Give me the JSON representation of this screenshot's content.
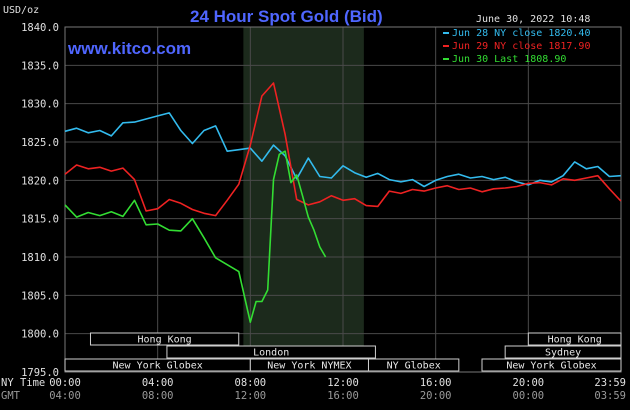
{
  "header": {
    "title": "24 Hour Spot Gold (Bid)",
    "unit": "USD/oz",
    "website": "www.kitco.com",
    "timestamp": "June 30, 2022 10:48"
  },
  "colors": {
    "background": "#000000",
    "grid": "#555555",
    "highlight": "#1c2a1c",
    "session_bar": "#000000",
    "session_border": "#cccccc"
  },
  "chart_data": {
    "type": "line",
    "title": "24 Hour Spot Gold (Bid)",
    "ylabel": "USD/oz",
    "ylim": [
      1795.0,
      1840.0
    ],
    "yticks": [
      "1840.0",
      "1835.0",
      "1830.0",
      "1825.0",
      "1820.0",
      "1815.0",
      "1810.0",
      "1805.0",
      "1800.0",
      "1795.0"
    ],
    "xlim": [
      0,
      24
    ],
    "x_axis_rows": [
      {
        "label": "NY Time",
        "ticks": [
          "00:00",
          "04:00",
          "08:00",
          "12:00",
          "16:00",
          "20:00",
          "23:59"
        ]
      },
      {
        "label": "GMT",
        "ticks": [
          "04:00",
          "08:00",
          "12:00",
          "16:00",
          "20:00",
          "00:00",
          "03:59"
        ]
      }
    ],
    "highlight_band": [
      7.7,
      12.9
    ],
    "grid": true,
    "legend": "top-right",
    "series": [
      {
        "name": "Jun 28 NY close 1820.40",
        "color": "#33bbee",
        "x": [
          0,
          0.5,
          1,
          1.5,
          2,
          2.5,
          3,
          3.5,
          4,
          4.5,
          5,
          5.5,
          6,
          6.5,
          7,
          7.5,
          8,
          8.5,
          9,
          9.5,
          10,
          10.5,
          11,
          11.5,
          12,
          12.5,
          13,
          13.5,
          14,
          14.5,
          15,
          15.5,
          16,
          16.5,
          17,
          17.5,
          18,
          18.5,
          19,
          19.5,
          20,
          20.5,
          21,
          21.5,
          22,
          22.5,
          23,
          23.5,
          23.99
        ],
        "y": [
          1826.4,
          1826.8,
          1826.2,
          1826.5,
          1825.8,
          1827.5,
          1827.6,
          1828.0,
          1828.4,
          1828.8,
          1826.5,
          1824.8,
          1826.5,
          1827.1,
          1823.8,
          1824.0,
          1824.2,
          1822.5,
          1824.6,
          1823.2,
          1820.2,
          1822.9,
          1820.5,
          1820.3,
          1821.9,
          1821.0,
          1820.4,
          1820.9,
          1820.1,
          1819.8,
          1820.1,
          1819.2,
          1820.0,
          1820.5,
          1820.8,
          1820.3,
          1820.5,
          1820.1,
          1820.4,
          1819.8,
          1819.4,
          1820.0,
          1819.8,
          1820.6,
          1822.4,
          1821.5,
          1821.8,
          1820.5,
          1820.6
        ]
      },
      {
        "name": "Jun 29 NY close 1817.90",
        "color": "#ee2222",
        "x": [
          0,
          0.5,
          1,
          1.5,
          2,
          2.5,
          3,
          3.5,
          4,
          4.5,
          5,
          5.5,
          6,
          6.5,
          7,
          7.5,
          8,
          8.5,
          9,
          9.5,
          10,
          10.5,
          11,
          11.5,
          12,
          12.5,
          13,
          13.5,
          14,
          14.5,
          15,
          15.5,
          16,
          16.5,
          17,
          17.5,
          18,
          18.5,
          19,
          19.5,
          20,
          20.5,
          21,
          21.5,
          22,
          22.5,
          23,
          23.5,
          23.99
        ],
        "y": [
          1820.8,
          1822.0,
          1821.5,
          1821.7,
          1821.2,
          1821.6,
          1820.1,
          1816.0,
          1816.3,
          1817.5,
          1817.0,
          1816.2,
          1815.7,
          1815.4,
          1817.4,
          1819.5,
          1824.6,
          1831.0,
          1832.7,
          1826.0,
          1817.5,
          1816.8,
          1817.2,
          1818.0,
          1817.4,
          1817.6,
          1816.7,
          1816.6,
          1818.6,
          1818.3,
          1818.8,
          1818.6,
          1819.0,
          1819.3,
          1818.8,
          1819.0,
          1818.5,
          1818.9,
          1819.0,
          1819.2,
          1819.6,
          1819.7,
          1819.4,
          1820.2,
          1820.0,
          1820.3,
          1820.6,
          1818.9,
          1817.3
        ]
      },
      {
        "name": "Jun 30 Last 1808.90",
        "color": "#33dd33",
        "x": [
          0,
          0.5,
          1,
          1.5,
          2,
          2.5,
          3,
          3.5,
          4,
          4.5,
          5,
          5.5,
          6,
          6.5,
          7,
          7.5,
          8,
          8.25,
          8.5,
          8.75,
          9,
          9.25,
          9.5,
          9.75,
          10,
          10.25,
          10.5,
          10.75,
          11,
          11.25
        ],
        "y": [
          1816.8,
          1815.2,
          1815.8,
          1815.4,
          1815.9,
          1815.3,
          1817.4,
          1814.2,
          1814.3,
          1813.5,
          1813.4,
          1815.0,
          1812.5,
          1809.9,
          1809.0,
          1808.1,
          1801.5,
          1804.2,
          1804.2,
          1805.7,
          1820.1,
          1823.4,
          1823.8,
          1819.7,
          1820.7,
          1818.0,
          1815.2,
          1813.5,
          1811.3,
          1810.0
        ]
      }
    ]
  },
  "sessions": [
    {
      "label": "Hong Kong",
      "start": 1.1,
      "end": 7.5,
      "row": 0
    },
    {
      "label": "Hong Kong",
      "start": 20.0,
      "end": 24.0,
      "row": 0
    },
    {
      "label": "London",
      "start": 4.4,
      "end": 13.4,
      "row": 1
    },
    {
      "label": "Sydney",
      "start": 19.0,
      "end": 24.0,
      "row": 1
    },
    {
      "label": "New York Globex",
      "start": 0,
      "end": 8.0,
      "row": 2
    },
    {
      "label": "New York NYMEX",
      "start": 8.0,
      "end": 13.1,
      "row": 2
    },
    {
      "label": "NY Globex",
      "start": 13.1,
      "end": 17.0,
      "row": 2
    },
    {
      "label": "New York Globex",
      "start": 18.0,
      "end": 24.0,
      "row": 2
    }
  ]
}
